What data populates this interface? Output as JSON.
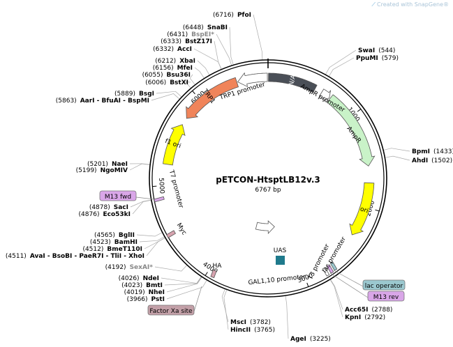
{
  "watermark": {
    "text": "Created with SnapGene®",
    "icon": "snapgene-logo-icon"
  },
  "plasmid": {
    "name": "pETCON-HtsptLB12v.3",
    "length_label": "6767 bp",
    "length": 6767
  },
  "ticks": [
    {
      "label": "1000",
      "pos": 1000
    },
    {
      "label": "2000",
      "pos": 2000
    },
    {
      "label": "3000",
      "pos": 3000
    },
    {
      "label": "4000",
      "pos": 4000
    },
    {
      "label": "5000",
      "pos": 5000
    },
    {
      "label": "6000",
      "pos": 6000
    }
  ],
  "features": [
    {
      "name": "CEN/ARS",
      "start": 5,
      "end": 520,
      "color": "#4a4f57",
      "text_color": "#ffffff",
      "direction": "none",
      "label_inside": true
    },
    {
      "name": "AmpR promoter",
      "start": 600,
      "end": 700,
      "color": "#ffffff",
      "direction": "cw",
      "label_inside": false
    },
    {
      "name": "AmpR",
      "start": 710,
      "end": 1560,
      "color": "#c9f2c8",
      "direction": "cw",
      "label_inside": false
    },
    {
      "name": "ori",
      "start": 1740,
      "end": 2330,
      "color": "#ffff00",
      "text_color": "#000000",
      "direction": "cw",
      "label_inside": true
    },
    {
      "name": "lac operator",
      "start": 2705,
      "end": 2722,
      "color": "#9bc8cf",
      "direction": "none",
      "label_inside": false
    },
    {
      "name": "M13 rev",
      "start": 2737,
      "end": 2755,
      "color": "#d9a6e8",
      "direction": "ccw",
      "label_inside": false
    },
    {
      "name": "lac promoter",
      "start": 2660,
      "end": 2700,
      "color": "#ffffff",
      "direction": "ccw",
      "label_inside": false
    },
    {
      "name": "T3 promoter",
      "start": 2775,
      "end": 2795,
      "color": "#ffffff",
      "direction": "ccw",
      "label_inside": false
    },
    {
      "name": "UAS",
      "color": "#1f7a8c",
      "direction": "none",
      "label_inside": false
    },
    {
      "name": "GAL1,10 promoter",
      "start": 3240,
      "end": 3640,
      "color": "#ffffff",
      "direction": "ccw",
      "label_inside": false
    },
    {
      "name": "Factor Xa site",
      "start": 3985,
      "end": 3995,
      "color": "#c3a0a8",
      "direction": "none",
      "label_inside": false
    },
    {
      "name": "HA",
      "start": 4050,
      "end": 4075,
      "color": "#d7a3af",
      "direction": "none",
      "label_inside": false
    },
    {
      "name": "Myc",
      "start": 4670,
      "end": 4700,
      "color": "#d7a3af",
      "direction": "none",
      "label_inside": false
    },
    {
      "name": "T7 promoter",
      "start": 4950,
      "end": 4970,
      "color": "#ffffff",
      "direction": "cw",
      "label_inside": false
    },
    {
      "name": "M13 fwd",
      "start": 4990,
      "end": 5008,
      "color": "#d9a6e8",
      "direction": "cw",
      "label_inside": false
    },
    {
      "name": "f1 ori",
      "start": 5225,
      "end": 5680,
      "color": "#ffff00",
      "text_color": "#000000",
      "direction": "cw",
      "label_inside": true
    },
    {
      "name": "TRP1",
      "start": 5760,
      "end": 6430,
      "color": "#f0845a",
      "text_color": "#000000",
      "direction": "ccw",
      "label_inside": true
    },
    {
      "name": "TRP1 promoter",
      "start": 6440,
      "end": 6760,
      "color": "#ffffff",
      "direction": "ccw",
      "label_inside": false
    }
  ],
  "sites_right": [
    {
      "name": "SwaI",
      "pos": "(544)",
      "site": 544
    },
    {
      "name": "PpuMI",
      "pos": "(579)",
      "site": 579
    },
    {
      "name": "BpmI",
      "pos": "(1433)",
      "site": 1433
    },
    {
      "name": "AhdI",
      "pos": "(1502)",
      "site": 1502
    }
  ],
  "sites_bottom": [
    {
      "name": "Acc65I",
      "pos": "(2788)",
      "site": 2788
    },
    {
      "name": "KpnI",
      "pos": "(2792)",
      "site": 2792
    },
    {
      "name": "AgeI",
      "pos": "(3225)",
      "site": 3225
    },
    {
      "name": "MscI",
      "pos": "(3782)",
      "site": 3782
    },
    {
      "name": "HincII",
      "pos": "(3765)",
      "site": 3765
    }
  ],
  "sites_left": [
    {
      "name": "PfoI",
      "pos": "(6716)",
      "site": 6716
    },
    {
      "name": "SnaBI",
      "pos": "(6448)",
      "site": 6448
    },
    {
      "name": "BspEI*",
      "pos": "(6431)",
      "site": 6431,
      "grey": true
    },
    {
      "name": "BstZ17I",
      "pos": "(6333)",
      "site": 6333
    },
    {
      "name": "AccI",
      "pos": "(6332)",
      "site": 6332
    },
    {
      "name": "XbaI",
      "pos": "(6212)",
      "site": 6212
    },
    {
      "name": "MfeI",
      "pos": "(6156)",
      "site": 6156
    },
    {
      "name": "Bsu36I",
      "pos": "(6055)",
      "site": 6055
    },
    {
      "name": "BstXI",
      "pos": "(6006)",
      "site": 6006
    },
    {
      "name": "BsgI",
      "pos": "(5889)",
      "site": 5889
    },
    {
      "name": "AarI - BfuAI - BspMI",
      "pos": "(5863)",
      "site": 5863
    },
    {
      "name": "NaeI",
      "pos": "(5201)",
      "site": 5201
    },
    {
      "name": "NgoMIV",
      "pos": "(5199)",
      "site": 5199
    },
    {
      "name": "SacI",
      "pos": "(4878)",
      "site": 4878
    },
    {
      "name": "Eco53kI",
      "pos": "(4876)",
      "site": 4876
    },
    {
      "name": "BglII",
      "pos": "(4565)",
      "site": 4565
    },
    {
      "name": "BamHI",
      "pos": "(4523)",
      "site": 4523
    },
    {
      "name": "BmeT110I",
      "pos": "(4512)",
      "site": 4512
    },
    {
      "name": "AvaI - BsoBI - PaeR7I - TliI - XhoI",
      "pos": "(4511)",
      "site": 4511
    },
    {
      "name": "SexAI*",
      "pos": "(4192)",
      "site": 4192,
      "grey": true
    },
    {
      "name": "NdeI",
      "pos": "(4026)",
      "site": 4026
    },
    {
      "name": "BmtI",
      "pos": "(4023)",
      "site": 4023
    },
    {
      "name": "NheI",
      "pos": "(4019)",
      "site": 4019
    },
    {
      "name": "PstI",
      "pos": "(3966)",
      "site": 3966
    }
  ]
}
